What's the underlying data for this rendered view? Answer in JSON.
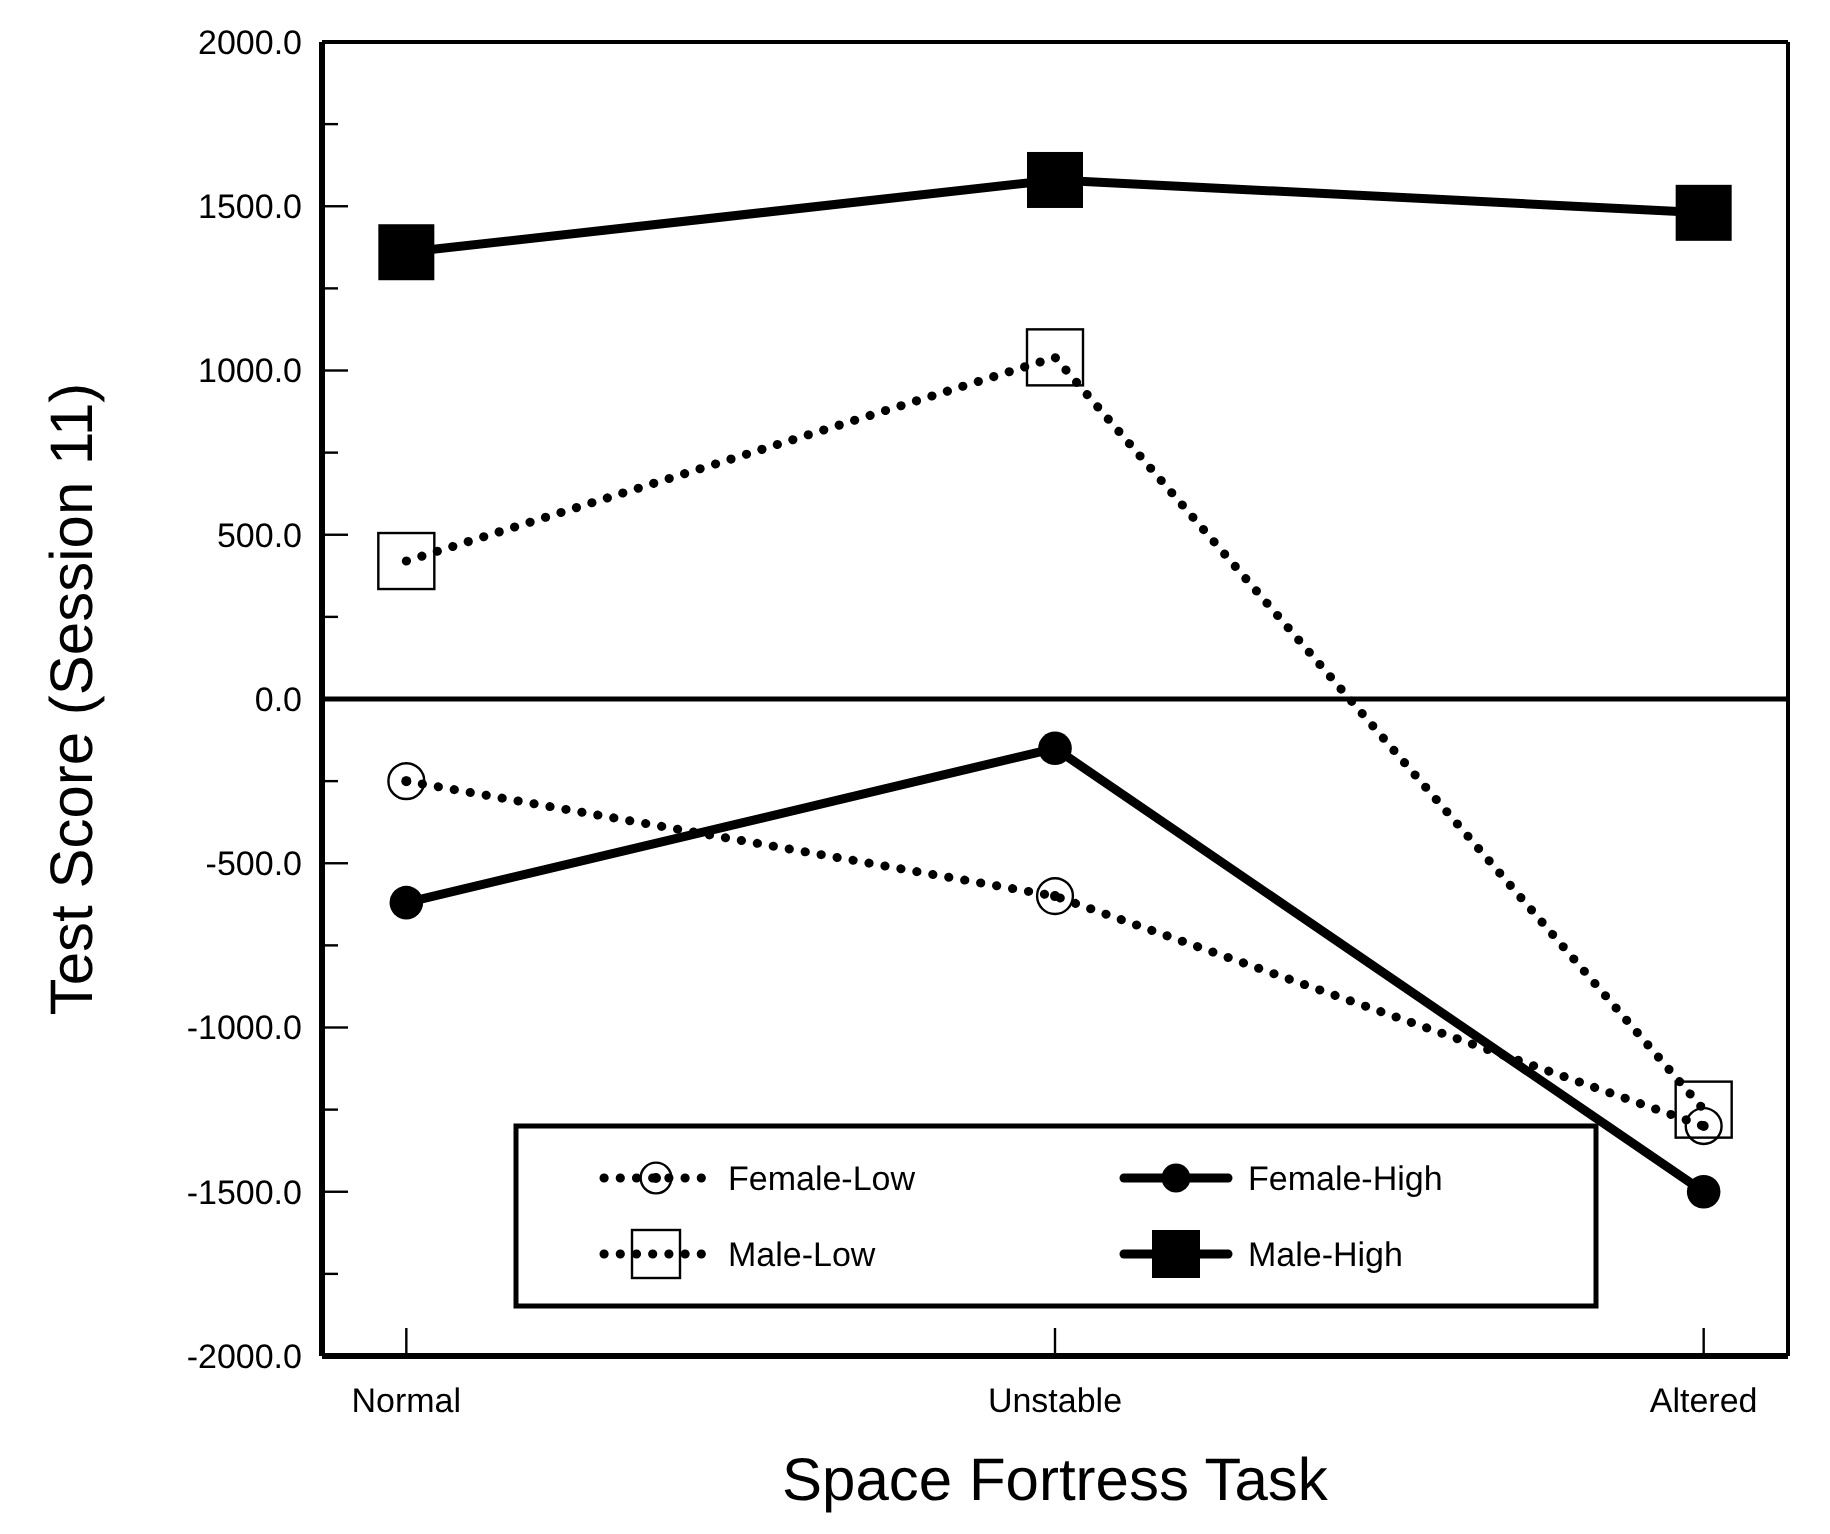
{
  "chart_data": {
    "type": "line",
    "xlabel": "Space Fortress Task",
    "ylabel": "Test Score (Session 11)",
    "categories": [
      "Normal",
      "Unstable",
      "Altered"
    ],
    "series": [
      {
        "name": "Female-Low",
        "color": "#000000",
        "values": [
          -250,
          -600,
          -1300
        ],
        "marker": "circle",
        "line_style": "dotted"
      },
      {
        "name": "Female-High",
        "color": "#000000",
        "values": [
          -620,
          -150,
          -1500
        ],
        "marker": "circle",
        "line_style": "solid"
      },
      {
        "name": "Male-Low",
        "color": "#000000",
        "values": [
          420,
          1040,
          -1250
        ],
        "marker": "square",
        "line_style": "dotted"
      },
      {
        "name": "Male-High",
        "color": "#000000",
        "values": [
          1360,
          1580,
          1480
        ],
        "marker": "square",
        "line_style": "solid"
      }
    ],
    "ylim": [
      -2000,
      2000
    ],
    "yticks": [
      {
        "value": -2000,
        "label": "-2000.0"
      },
      {
        "value": -1750,
        "label": null
      },
      {
        "value": -1500,
        "label": "-1500.0"
      },
      {
        "value": -1250,
        "label": null
      },
      {
        "value": -1000,
        "label": "-1000.0"
      },
      {
        "value": -750,
        "label": null
      },
      {
        "value": -500,
        "label": "-500.0"
      },
      {
        "value": -250,
        "label": null
      },
      {
        "value": 0,
        "label": "0.0"
      },
      {
        "value": 250,
        "label": null
      },
      {
        "value": 500,
        "label": "500.0"
      },
      {
        "value": 750,
        "label": null
      },
      {
        "value": 1000,
        "label": "1000.0"
      },
      {
        "value": 1250,
        "label": null
      },
      {
        "value": 1500,
        "label": "1500.0"
      },
      {
        "value": 1750,
        "label": null
      },
      {
        "value": 2000,
        "label": "2000.0"
      }
    ],
    "ref_lines": [
      {
        "axis": "y",
        "value": 0,
        "color": "#000000",
        "line_style": "solid"
      }
    ],
    "grid": false,
    "legend": "bottom"
  }
}
